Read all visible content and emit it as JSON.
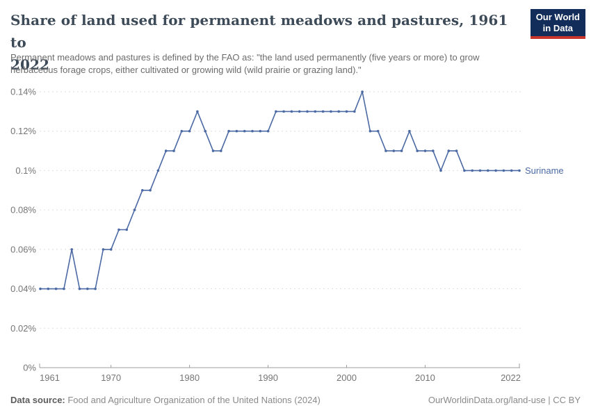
{
  "header": {
    "title_line1": "Share of land used for permanent meadows and pastures, 1961 to",
    "title_line2": "2022",
    "subtitle_line1": "Permanent meadows and pastures is defined by the FAO as: \"the land used permanently (five years or more) to grow",
    "subtitle_line2": "herbaceous forage crops, either cultivated or growing wild (wild prairie or grazing land).\"",
    "logo_line1": "Our World",
    "logo_line2": "in Data"
  },
  "chart_data": {
    "type": "line",
    "title": "Share of land used for permanent meadows and pastures, 1961 to 2022",
    "xlim": [
      1961,
      2022
    ],
    "ylim": [
      0,
      0.14
    ],
    "x_ticks": [
      1961,
      1970,
      1980,
      1990,
      2000,
      2010,
      2022
    ],
    "y_ticks": [
      0,
      0.02,
      0.04,
      0.06,
      0.08,
      0.1,
      0.12,
      0.14
    ],
    "y_tick_labels": [
      "0%",
      "0.02%",
      "0.04%",
      "0.06%",
      "0.08%",
      "0.1%",
      "0.12%",
      "0.14%"
    ],
    "grid": true,
    "legend_position": "end-of-line-label",
    "series": [
      {
        "name": "Suriname",
        "color": "#4b69a3",
        "years": [
          1961,
          1962,
          1963,
          1964,
          1965,
          1966,
          1967,
          1968,
          1969,
          1970,
          1971,
          1972,
          1973,
          1974,
          1975,
          1976,
          1977,
          1978,
          1979,
          1980,
          1981,
          1982,
          1983,
          1984,
          1985,
          1986,
          1987,
          1988,
          1989,
          1990,
          1991,
          1992,
          1993,
          1994,
          1995,
          1996,
          1997,
          1998,
          1999,
          2000,
          2001,
          2002,
          2003,
          2004,
          2005,
          2006,
          2007,
          2008,
          2009,
          2010,
          2011,
          2012,
          2013,
          2014,
          2015,
          2016,
          2017,
          2018,
          2019,
          2020,
          2021,
          2022
        ],
        "values": [
          0.04,
          0.04,
          0.04,
          0.04,
          0.06,
          0.04,
          0.04,
          0.04,
          0.06,
          0.06,
          0.07,
          0.07,
          0.08,
          0.09,
          0.09,
          0.1,
          0.11,
          0.11,
          0.12,
          0.12,
          0.13,
          0.12,
          0.11,
          0.11,
          0.12,
          0.12,
          0.12,
          0.12,
          0.12,
          0.12,
          0.13,
          0.13,
          0.13,
          0.13,
          0.13,
          0.13,
          0.13,
          0.13,
          0.13,
          0.13,
          0.13,
          0.14,
          0.12,
          0.12,
          0.11,
          0.11,
          0.11,
          0.12,
          0.11,
          0.11,
          0.11,
          0.1,
          0.11,
          0.11,
          0.1,
          0.1,
          0.1,
          0.1,
          0.1,
          0.1,
          0.1,
          0.1
        ]
      }
    ]
  },
  "footer": {
    "datasource_label": "Data source:",
    "datasource_text": " Food and Agriculture Organization of the United Nations (2024)",
    "right_text": "OurWorldinData.org/land-use | CC BY"
  },
  "colors": {
    "series_line": "#4b69a3",
    "gridline": "#dedede",
    "axis": "#9e9e9e",
    "axis_text": "#757575",
    "logo_bg": "#122d5a",
    "logo_red": "#c8352a"
  }
}
